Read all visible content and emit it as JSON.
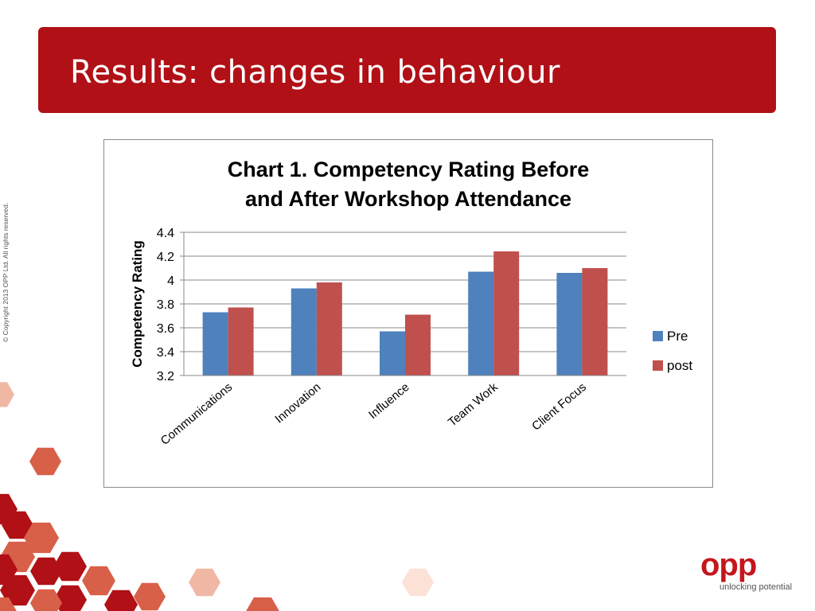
{
  "slide": {
    "title": "Results: changes in behaviour",
    "copyright": "© Copyright 2013 OPP Ltd. All rights reserved.",
    "logo": {
      "text": "opp",
      "tagline": "unlocking potential"
    },
    "colors": {
      "banner": "#b01016",
      "hex_light": "#f0b8a4",
      "hex_mid": "#d86048",
      "hex_dark": "#b01016"
    }
  },
  "chart_data": {
    "type": "bar",
    "title_lines": [
      "Chart 1. Competency Rating Before",
      "and After Workshop Attendance"
    ],
    "ylabel": "Competency Rating",
    "xlabel": "",
    "ylim": [
      3.2,
      4.4
    ],
    "yticks": [
      "3.2",
      "3.4",
      "3.6",
      "3.8",
      "4",
      "4.2",
      "4.4"
    ],
    "grid": true,
    "legend_position": "right",
    "categories": [
      "Communications",
      "Innovation",
      "Influence",
      "Team Work",
      "Client Focus"
    ],
    "series": [
      {
        "name": "Pre",
        "color": "#4f81bd",
        "values": [
          3.73,
          3.93,
          3.57,
          4.07,
          4.06
        ]
      },
      {
        "name": "post",
        "color": "#c0504d",
        "values": [
          3.77,
          3.98,
          3.71,
          4.24,
          4.1
        ]
      }
    ]
  }
}
